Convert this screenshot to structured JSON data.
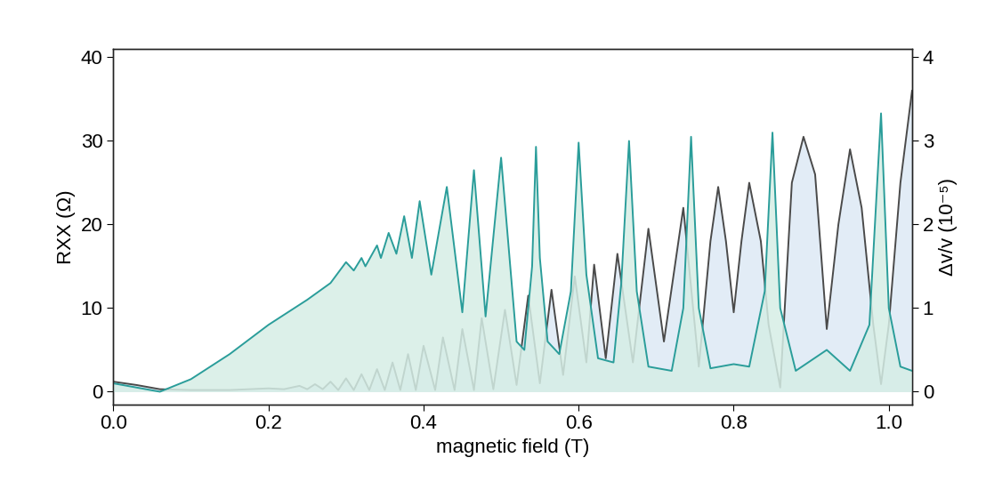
{
  "chart_data": {
    "type": "line",
    "x_label": "magnetic field (T)",
    "y_label": "RXX (Ω)",
    "y2_label": "Δv/v (10⁻⁵)",
    "xlim": [
      0,
      1.03
    ],
    "xticks": [
      0.0,
      0.2,
      0.4,
      0.6,
      0.8,
      1.0
    ],
    "ylim": [
      -1.5,
      41
    ],
    "yticks": [
      0,
      10,
      20,
      30,
      40
    ],
    "y2lim": [
      -0.15,
      4.1
    ],
    "y2ticks": [
      0,
      1,
      2,
      3,
      4
    ],
    "grid": false,
    "series": [
      {
        "color": "#4a4a4a",
        "axis": "y",
        "x": [
          0.0,
          0.03,
          0.06,
          0.1,
          0.15,
          0.2,
          0.22,
          0.24,
          0.25,
          0.26,
          0.27,
          0.28,
          0.29,
          0.3,
          0.31,
          0.32,
          0.33,
          0.34,
          0.35,
          0.36,
          0.37,
          0.38,
          0.39,
          0.4,
          0.415,
          0.425,
          0.44,
          0.45,
          0.465,
          0.475,
          0.49,
          0.505,
          0.52,
          0.535,
          0.55,
          0.565,
          0.58,
          0.595,
          0.61,
          0.62,
          0.635,
          0.65,
          0.67,
          0.69,
          0.71,
          0.735,
          0.755,
          0.77,
          0.78,
          0.79,
          0.8,
          0.81,
          0.82,
          0.835,
          0.845,
          0.86,
          0.875,
          0.89,
          0.905,
          0.92,
          0.935,
          0.95,
          0.965,
          0.98,
          0.99,
          1.0,
          1.015,
          1.03
        ],
        "values": [
          1.2,
          0.8,
          0.3,
          0.2,
          0.2,
          0.4,
          0.3,
          0.7,
          0.3,
          0.9,
          0.3,
          1.2,
          0.2,
          1.6,
          0.2,
          2.1,
          0.2,
          2.7,
          0.2,
          3.5,
          0.2,
          4.5,
          0.2,
          5.5,
          0.2,
          6.5,
          0.2,
          7.5,
          0.2,
          8.8,
          0.3,
          9.8,
          0.8,
          11.5,
          1.0,
          12.2,
          2.0,
          13.8,
          3.5,
          15.2,
          4.0,
          16.5,
          3.5,
          19.5,
          6.0,
          22.0,
          3.0,
          18.0,
          24.5,
          18.0,
          9.5,
          18.0,
          25.0,
          18.0,
          8.0,
          0.5,
          25.0,
          30.5,
          26.0,
          7.5,
          20.0,
          29.0,
          22.0,
          8.0,
          0.9,
          8.0,
          25.0,
          36.0
        ]
      },
      {
        "color": "#2a9d9a",
        "axis": "y2",
        "x": [
          0.0,
          0.03,
          0.06,
          0.1,
          0.15,
          0.2,
          0.25,
          0.28,
          0.3,
          0.31,
          0.32,
          0.325,
          0.34,
          0.345,
          0.355,
          0.365,
          0.375,
          0.385,
          0.395,
          0.41,
          0.43,
          0.45,
          0.465,
          0.48,
          0.5,
          0.52,
          0.53,
          0.54,
          0.545,
          0.55,
          0.56,
          0.575,
          0.59,
          0.6,
          0.61,
          0.625,
          0.645,
          0.655,
          0.665,
          0.675,
          0.69,
          0.72,
          0.735,
          0.745,
          0.755,
          0.77,
          0.8,
          0.82,
          0.84,
          0.85,
          0.86,
          0.88,
          0.92,
          0.95,
          0.975,
          0.99,
          1.0,
          1.015,
          1.03
        ],
        "values": [
          0.1,
          0.05,
          0.0,
          0.15,
          0.45,
          0.8,
          1.1,
          1.3,
          1.55,
          1.45,
          1.6,
          1.5,
          1.75,
          1.6,
          1.9,
          1.65,
          2.1,
          1.6,
          2.28,
          1.4,
          2.45,
          0.95,
          2.65,
          0.9,
          2.8,
          0.6,
          0.5,
          1.5,
          2.93,
          1.6,
          0.6,
          0.45,
          1.2,
          2.98,
          1.4,
          0.4,
          0.35,
          1.3,
          3.0,
          1.2,
          0.3,
          0.25,
          1.0,
          3.05,
          1.0,
          0.28,
          0.33,
          0.3,
          1.2,
          3.1,
          1.0,
          0.25,
          0.5,
          0.25,
          0.8,
          3.33,
          1.0,
          0.3,
          0.25
        ]
      }
    ]
  }
}
